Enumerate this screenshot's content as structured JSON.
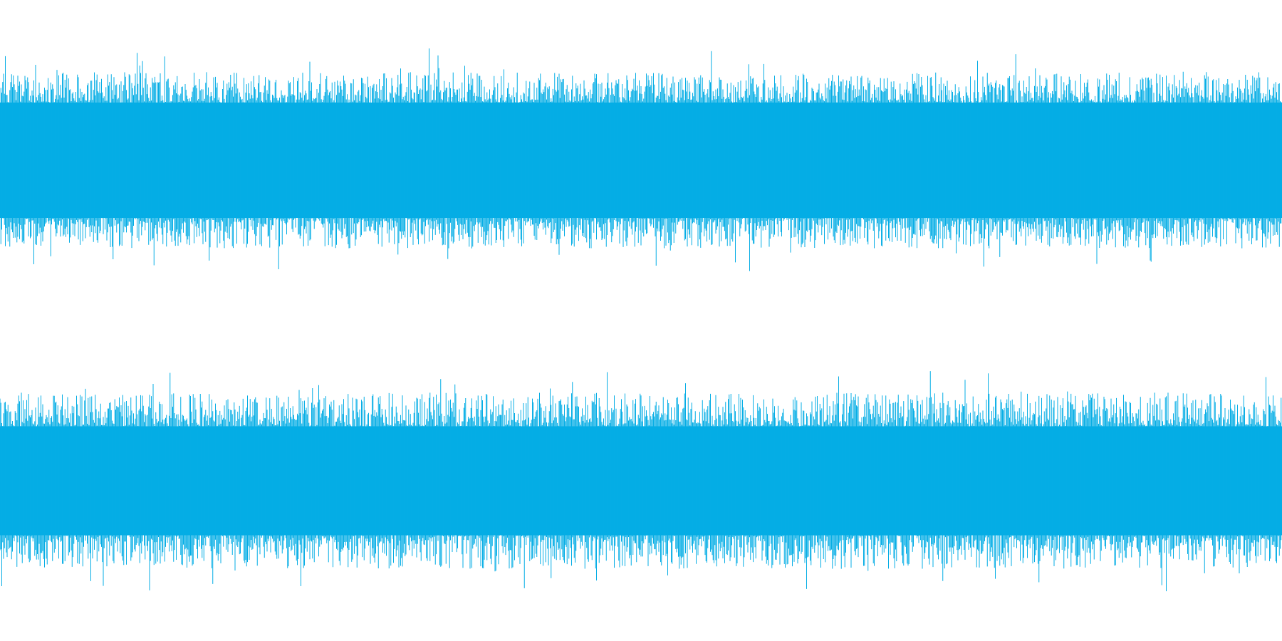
{
  "chart_data": {
    "type": "area",
    "title": "",
    "xlabel": "",
    "ylabel": "",
    "grid": false,
    "legend": "none",
    "ylim": [
      -1,
      1
    ],
    "color": "#05ADE5",
    "background": "#FFFFFF",
    "channels": [
      {
        "name": "",
        "envelope": {
          "core_amplitude": 0.36,
          "typical_peak": 0.55,
          "max_peak": 0.7
        }
      },
      {
        "name": "",
        "envelope": {
          "core_amplitude": 0.34,
          "typical_peak": 0.55,
          "max_peak": 0.7
        }
      }
    ]
  }
}
